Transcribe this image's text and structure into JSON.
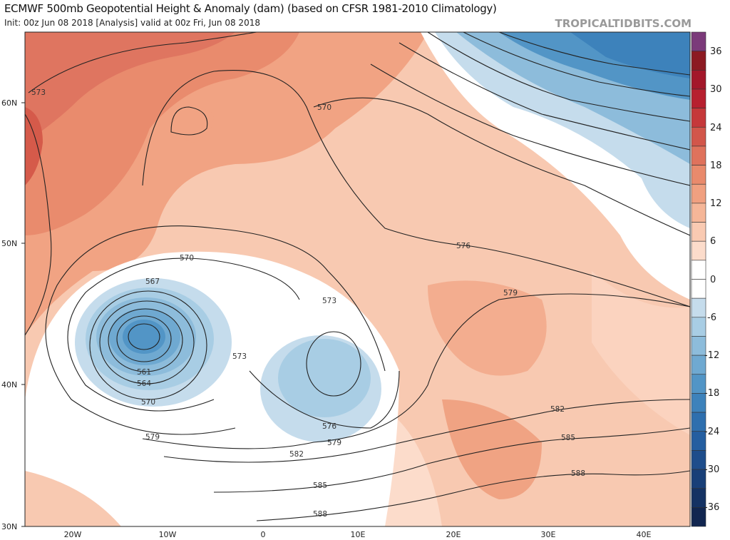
{
  "header": {
    "title": "ECMWF 500mb Geopotential Height & Anomaly (dam) (based on CFSR 1981-2010 Climatology)",
    "subtitle": "Init: 00z Jun 08 2018   [Analysis]   valid at 00z Fri, Jun 08 2018",
    "brand": "TROPICALTIDBITS.COM"
  },
  "map": {
    "lat_labels": [
      "60N",
      "50N",
      "40N",
      "30N"
    ],
    "lon_labels": [
      "20W",
      "10W",
      "0",
      "10E",
      "20E",
      "30E",
      "40E"
    ],
    "contour_labels": [
      "573",
      "570",
      "576",
      "579",
      "570",
      "567",
      "573",
      "573",
      "561",
      "564",
      "570",
      "579",
      "576",
      "579",
      "582",
      "585",
      "588",
      "582",
      "585",
      "588"
    ]
  },
  "colorbar": {
    "labels": [
      "36",
      "30",
      "24",
      "18",
      "12",
      "6",
      "0",
      "-6",
      "-12",
      "-18",
      "-24",
      "-30",
      "-36"
    ],
    "colors": [
      "#7b3a7a",
      "#8c1a22",
      "#a3172a",
      "#b7202f",
      "#c5383a",
      "#d2564a",
      "#df725c",
      "#e98a6c",
      "#f0a080",
      "#f5b698",
      "#f9cab2",
      "#fcdccb",
      "#ffffff",
      "#ffffff",
      "#c5dcec",
      "#a8cde4",
      "#8dbcdb",
      "#6fa9d1",
      "#5295c6",
      "#3d82bb",
      "#2e6fae",
      "#245ea0",
      "#1e4d8b",
      "#183f78",
      "#143263",
      "#112650"
    ]
  }
}
